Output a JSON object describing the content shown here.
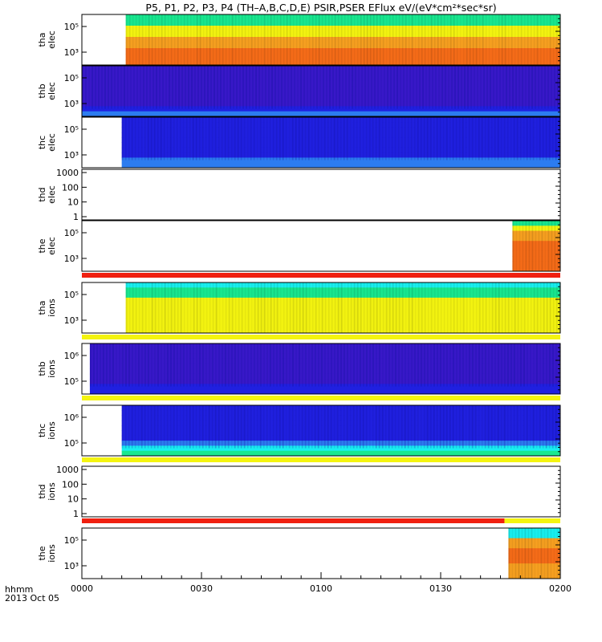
{
  "title": "P5, P1, P2, P3, P4 (TH–A,B,C,D,E) PSIR,PSER EFlux eV/(eV*cm²*sec*sr)",
  "footer": {
    "label1": "hhmm",
    "label2": "2013 Oct 05"
  },
  "colors": {
    "dark_blue": "#3818c8",
    "blue": "#2020e0",
    "light_blue": "#2c7cf0",
    "green": "#18e890",
    "yellow": "#f4f410",
    "orange": "#f7a020",
    "dark_orange": "#f66c18",
    "red": "#f02010",
    "cyan": "#18f0f0"
  },
  "chart_data": {
    "type": "heatmap",
    "xlim": [
      "0000",
      "0200"
    ],
    "x_ticks": [
      "0000",
      "0030",
      "0100",
      "0130",
      "0200"
    ],
    "panels": [
      {
        "id": "tha-elec",
        "ylabel": [
          "tha",
          "elec"
        ],
        "yticks": [
          "10⁵",
          "10³"
        ],
        "data_start": "0011",
        "data_end": "0200",
        "bands": [
          "green",
          "green",
          "yellow",
          "yellow",
          "orange",
          "orange",
          "dark_orange",
          "dark_orange",
          "dark_orange"
        ]
      },
      {
        "id": "thb-elec",
        "ylabel": [
          "thb",
          "elec"
        ],
        "yticks": [
          "10⁵",
          "10³"
        ],
        "data_start": "0000",
        "data_end": "0200",
        "bands": [
          "dark_blue",
          "dark_blue",
          "dark_blue",
          "dark_blue",
          "dark_blue",
          "dark_blue",
          "dark_blue",
          "dark_blue",
          "blue",
          "light_blue"
        ]
      },
      {
        "id": "thc-elec",
        "ylabel": [
          "thc",
          "elec"
        ],
        "yticks": [
          "10⁵",
          "10³"
        ],
        "data_start": "0010",
        "data_end": "0200",
        "bands": [
          "blue",
          "blue",
          "blue",
          "blue",
          "blue",
          "blue",
          "blue",
          "blue",
          "light_blue",
          "light_blue"
        ]
      },
      {
        "id": "thd-elec",
        "ylabel": [
          "thd",
          "elec"
        ],
        "yticks": [
          "1000",
          "100",
          "10",
          "1"
        ],
        "data_start": null,
        "data_end": null,
        "bands": []
      },
      {
        "id": "the-elec",
        "ylabel": [
          "the",
          "elec"
        ],
        "yticks": [
          "10⁵",
          "10³"
        ],
        "data_start": "0148",
        "data_end": "0200",
        "bands": [
          "green",
          "yellow",
          "orange",
          "orange",
          "dark_orange",
          "dark_orange",
          "dark_orange",
          "dark_orange",
          "dark_orange",
          "dark_orange"
        ]
      },
      {
        "id": "tha-ions",
        "ylabel": [
          "tha",
          "ions"
        ],
        "yticks": [
          "10⁵",
          "10³"
        ],
        "data_start": "0011",
        "data_end": "0200",
        "bands": [
          "cyan",
          "green",
          "green",
          "yellow",
          "yellow",
          "yellow",
          "yellow",
          "yellow",
          "yellow",
          "yellow"
        ]
      },
      {
        "id": "thb-ions",
        "ylabel": [
          "thb",
          "ions"
        ],
        "yticks": [
          "10⁶",
          "10⁵"
        ],
        "data_start": "0002",
        "data_end": "0200",
        "bands": [
          "dark_blue",
          "dark_blue",
          "dark_blue",
          "dark_blue",
          "dark_blue",
          "dark_blue",
          "dark_blue",
          "dark_blue",
          "blue",
          "blue"
        ]
      },
      {
        "id": "thc-ions",
        "ylabel": [
          "thc",
          "ions"
        ],
        "yticks": [
          "10⁶",
          "10⁵"
        ],
        "data_start": "0010",
        "data_end": "0200",
        "bands": [
          "blue",
          "blue",
          "blue",
          "blue",
          "blue",
          "blue",
          "blue",
          "light_blue",
          "cyan",
          "green"
        ]
      },
      {
        "id": "thd-ions",
        "ylabel": [
          "thd",
          "ions"
        ],
        "yticks": [
          "1000",
          "100",
          "10",
          "1"
        ],
        "data_start": null,
        "data_end": null,
        "bands": []
      },
      {
        "id": "the-ions",
        "ylabel": [
          "the",
          "ions"
        ],
        "yticks": [
          "10⁵",
          "10³"
        ],
        "data_start": "0147",
        "data_end": "0200",
        "bands": [
          "cyan",
          "cyan",
          "orange",
          "orange",
          "dark_orange",
          "dark_orange",
          "dark_orange",
          "orange",
          "orange",
          "orange"
        ]
      }
    ],
    "mode_bars": [
      {
        "after_panel": "the-elec",
        "segments": [
          {
            "from": "0000",
            "to": "0200",
            "color": "red"
          }
        ]
      },
      {
        "after_panel": "tha-ions",
        "segments": [
          {
            "from": "0000",
            "to": "0200",
            "color": "yellow"
          }
        ]
      },
      {
        "after_panel": "thb-ions",
        "segments": [
          {
            "from": "0000",
            "to": "0200",
            "color": "yellow"
          }
        ]
      },
      {
        "after_panel": "thc-ions",
        "segments": [
          {
            "from": "0000",
            "to": "0200",
            "color": "yellow"
          }
        ]
      },
      {
        "after_panel": "thd-ions",
        "segments": [
          {
            "from": "0000",
            "to": "0146",
            "color": "red"
          },
          {
            "from": "0146",
            "to": "0200",
            "color": "yellow"
          }
        ]
      }
    ]
  }
}
